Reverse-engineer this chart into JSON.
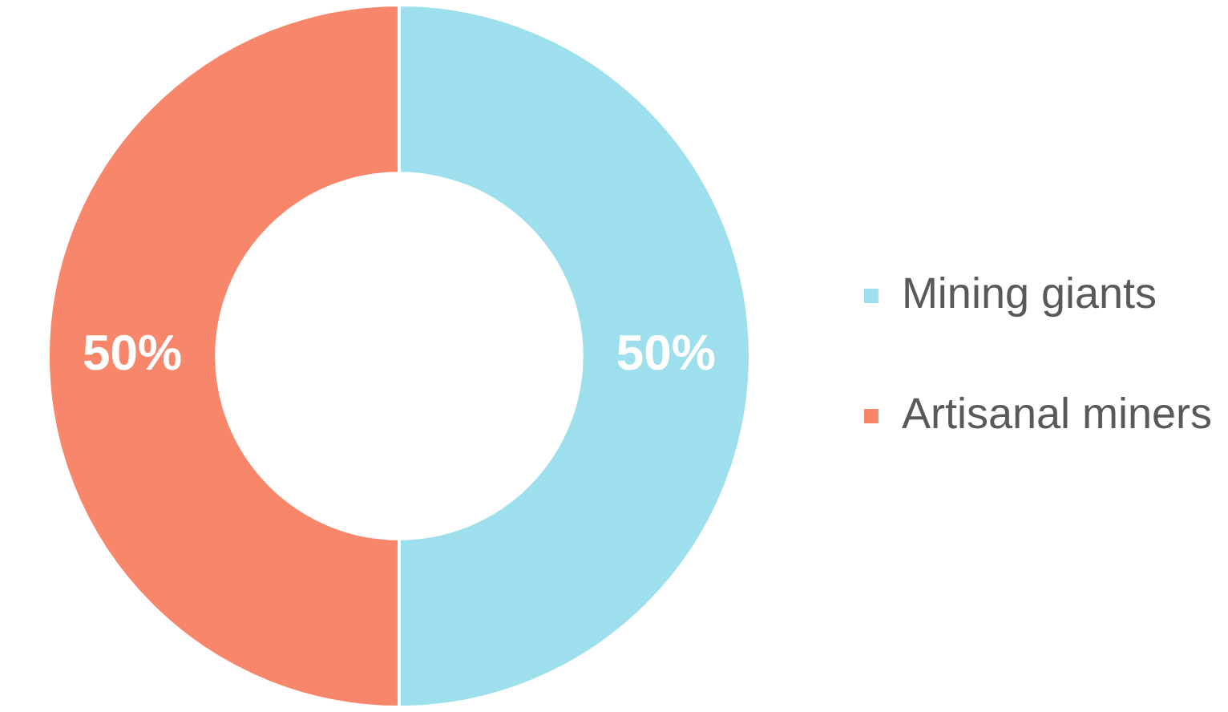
{
  "chart_data": {
    "type": "donut",
    "categories": [
      "Mining giants",
      "Artisanal miners"
    ],
    "values": [
      50,
      50
    ],
    "colors": [
      "#9ddfec",
      "#f7866a"
    ],
    "value_labels": [
      "50%",
      "50%"
    ],
    "legend": "right"
  }
}
